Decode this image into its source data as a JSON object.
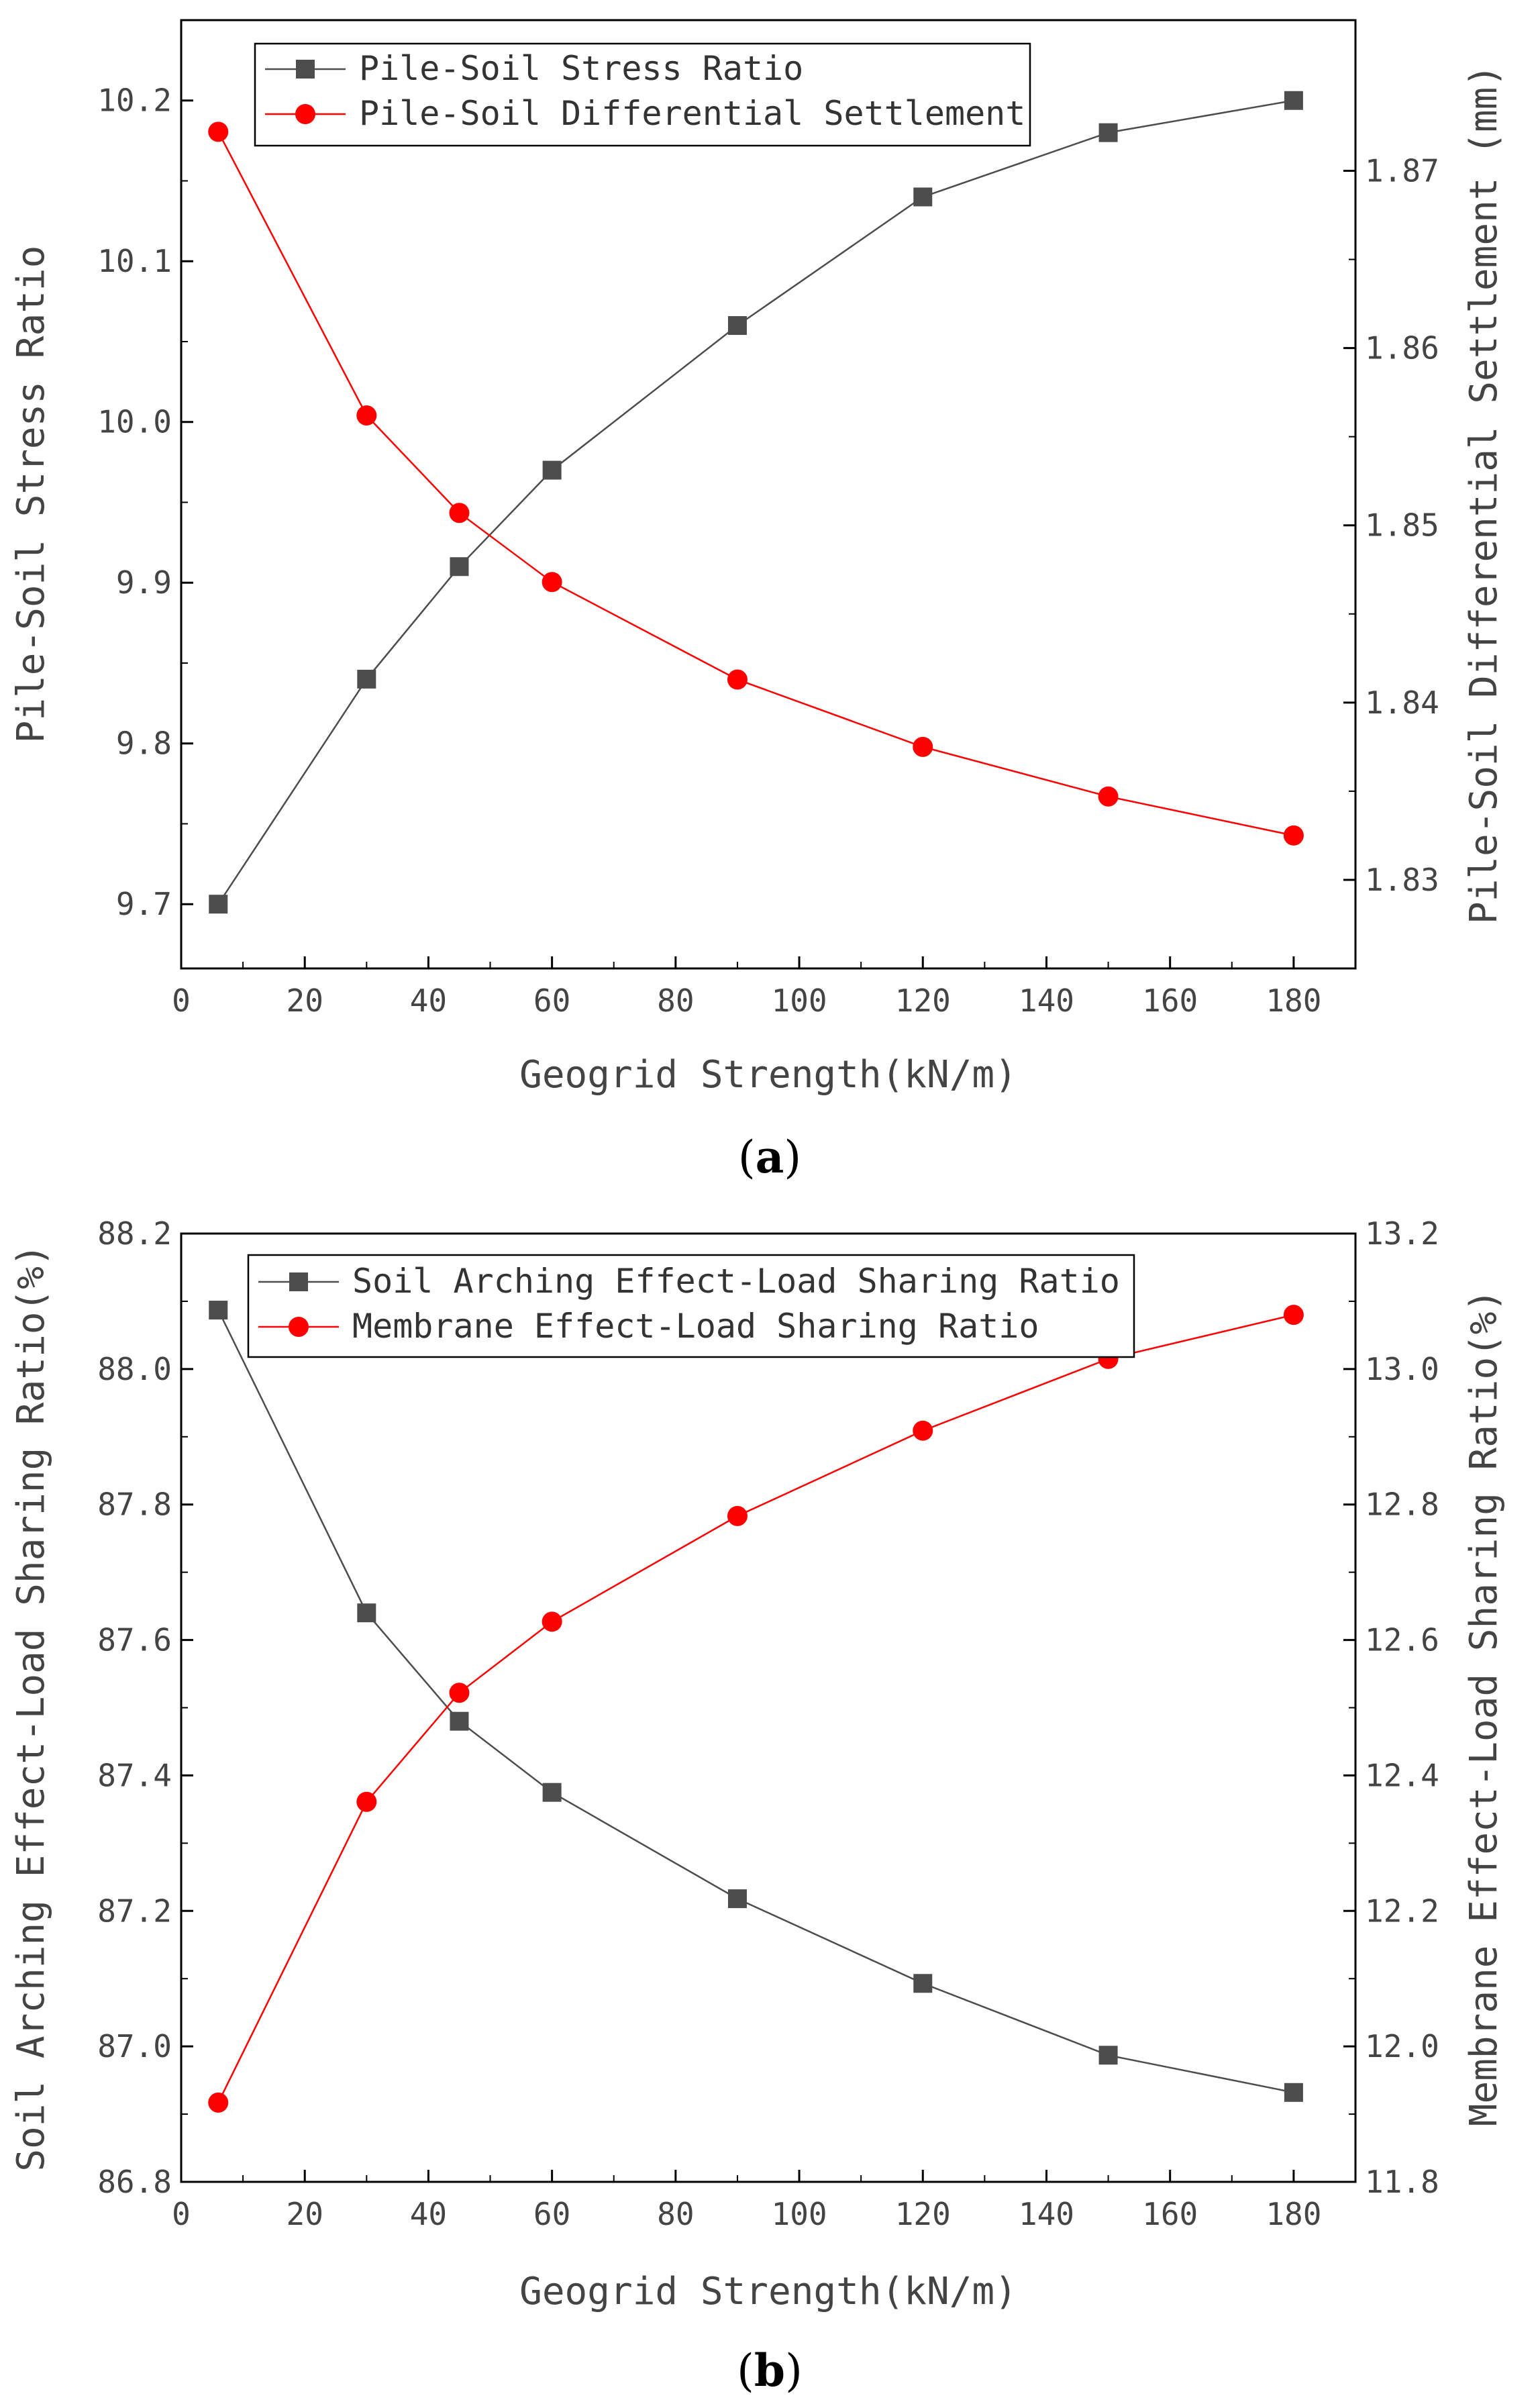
{
  "figure": {
    "captions": [
      {
        "open": "(",
        "letter": "a",
        "close": ")"
      },
      {
        "open": "(",
        "letter": "b",
        "close": ")"
      }
    ]
  },
  "colors": {
    "series_black": "#4d4d4d",
    "series_red": "#ff0000",
    "axis": "#000000",
    "text": "#444444"
  },
  "chart_data": [
    {
      "id": "a",
      "type": "line",
      "xlabel": "Geogrid Strength(kN/m)",
      "ylabel_left": "Pile-Soil Stress Ratio",
      "ylabel_right": "Pile-Soil Differential Settlement (mm)",
      "xlim": [
        0,
        190
      ],
      "xticks": [
        0,
        20,
        40,
        60,
        80,
        100,
        120,
        140,
        160,
        180
      ],
      "xtick_labels": [
        "0",
        "20",
        "40",
        "60",
        "80",
        "100",
        "120",
        "140",
        "160",
        "180"
      ],
      "ylim_left": [
        9.66,
        10.25
      ],
      "yticks_left": [
        9.7,
        9.8,
        9.9,
        10.0,
        10.1,
        10.2
      ],
      "yticks_left_labels": [
        "9.7",
        "9.8",
        "9.9",
        "10.0",
        "10.1",
        "10.2"
      ],
      "ylim_right": [
        1.825,
        1.8785
      ],
      "yticks_right": [
        1.83,
        1.84,
        1.85,
        1.86,
        1.87
      ],
      "yticks_right_labels": [
        "1.83",
        "1.84",
        "1.85",
        "1.86",
        "1.87"
      ],
      "legend_position": "top-left",
      "series": [
        {
          "name": "Pile-Soil Stress Ratio",
          "axis": "left",
          "marker": "square",
          "color": "#4d4d4d",
          "x": [
            6,
            30,
            45,
            60,
            90,
            120,
            150,
            180
          ],
          "y": [
            9.7,
            9.84,
            9.91,
            9.97,
            10.06,
            10.14,
            10.18,
            10.2
          ]
        },
        {
          "name": "Pile-Soil Differential Settlement",
          "axis": "right",
          "marker": "circle",
          "color": "#ff0000",
          "x": [
            6,
            30,
            45,
            60,
            90,
            120,
            150,
            180
          ],
          "y": [
            1.8722,
            1.8562,
            1.8507,
            1.8468,
            1.8413,
            1.8375,
            1.8347,
            1.8325
          ]
        }
      ]
    },
    {
      "id": "b",
      "type": "line",
      "xlabel": "Geogrid Strength(kN/m)",
      "ylabel_left": "Soil Arching Effect-Load Sharing Ratio(%)",
      "ylabel_right": "Membrane Effect-Load Sharing Ratio(%)",
      "xlim": [
        0,
        190
      ],
      "xticks": [
        0,
        20,
        40,
        60,
        80,
        100,
        120,
        140,
        160,
        180
      ],
      "xtick_labels": [
        "0",
        "20",
        "40",
        "60",
        "80",
        "100",
        "120",
        "140",
        "160",
        "180"
      ],
      "ylim_left": [
        86.8,
        88.2
      ],
      "yticks_left": [
        86.8,
        87.0,
        87.2,
        87.4,
        87.6,
        87.8,
        88.0,
        88.2
      ],
      "yticks_left_labels": [
        "86.8",
        "87.0",
        "87.2",
        "87.4",
        "87.6",
        "87.8",
        "88.0",
        "88.2"
      ],
      "ylim_right": [
        11.8,
        13.2
      ],
      "yticks_right": [
        11.8,
        12.0,
        12.2,
        12.4,
        12.6,
        12.8,
        13.0,
        13.2
      ],
      "yticks_right_labels": [
        "11.8",
        "12.0",
        "12.2",
        "12.4",
        "12.6",
        "12.8",
        "13.0",
        "13.2"
      ],
      "legend_position": "top-center",
      "series": [
        {
          "name": "Soil Arching Effect-Load Sharing Ratio",
          "axis": "left",
          "marker": "square",
          "color": "#4d4d4d",
          "x": [
            6,
            30,
            45,
            60,
            90,
            120,
            150,
            180
          ],
          "y": [
            88.087,
            87.64,
            87.48,
            87.375,
            87.218,
            87.093,
            86.987,
            86.932
          ]
        },
        {
          "name": "Membrane Effect-Load Sharing Ratio",
          "axis": "right",
          "marker": "circle",
          "color": "#ff0000",
          "x": [
            6,
            30,
            45,
            60,
            90,
            120,
            150,
            180
          ],
          "y": [
            11.917,
            12.361,
            12.522,
            12.627,
            12.783,
            12.909,
            13.015,
            13.08
          ]
        }
      ]
    }
  ]
}
